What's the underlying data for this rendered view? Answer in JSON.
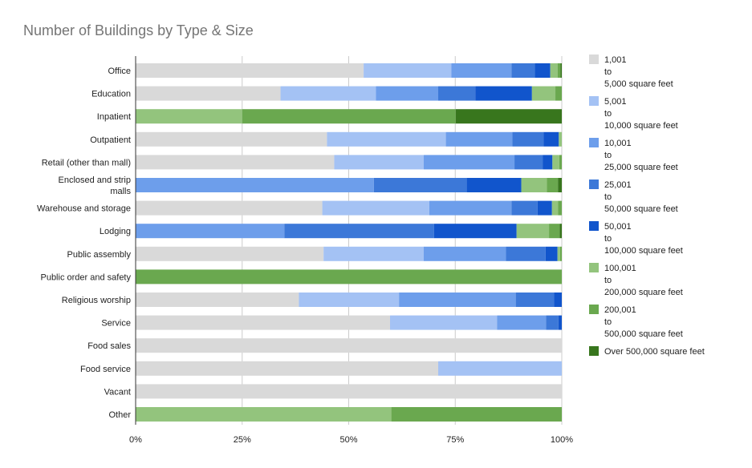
{
  "chart_data": {
    "type": "bar",
    "orientation": "horizontal",
    "stacked": "percent",
    "title": "Number of Buildings by Type & Size",
    "xlabel": "",
    "ylabel": "",
    "xlim": [
      0,
      100
    ],
    "x_ticks": [
      "0%",
      "25%",
      "50%",
      "75%",
      "100%"
    ],
    "grid": "vertical",
    "legend_position": "right",
    "categories": [
      [
        "Office"
      ],
      [
        "Education"
      ],
      [
        "Inpatient"
      ],
      [
        "Outpatient"
      ],
      [
        "Retail (other than mall)"
      ],
      [
        "Enclosed and strip",
        "malls"
      ],
      [
        "Warehouse and storage"
      ],
      [
        "Lodging"
      ],
      [
        "Public assembly"
      ],
      [
        "Public order and safety"
      ],
      [
        "Religious worship"
      ],
      [
        "Service"
      ],
      [
        "Food sales"
      ],
      [
        "Food service"
      ],
      [
        "Vacant"
      ],
      [
        "Other"
      ]
    ],
    "series": [
      {
        "name": [
          "1,001",
          "to",
          "5,000 square feet"
        ],
        "color": "#d9d9d9",
        "values": [
          53.5,
          34.0,
          0,
          44.9,
          46.6,
          0,
          43.8,
          0,
          44.1,
          0,
          38.3,
          59.7,
          100,
          71.0,
          100,
          0
        ]
      },
      {
        "name": [
          "5,001",
          "to",
          "10,000 square feet"
        ],
        "color": "#a4c2f4",
        "values": [
          20.6,
          22.4,
          0,
          27.9,
          21.0,
          0,
          25.1,
          0,
          23.5,
          0,
          23.5,
          25.1,
          0,
          29.0,
          0,
          0
        ]
      },
      {
        "name": [
          "10,001",
          "to",
          "25,000 square feet"
        ],
        "color": "#6d9eeb",
        "values": [
          14.1,
          14.6,
          0,
          15.6,
          21.3,
          55.9,
          19.3,
          34.9,
          19.3,
          0,
          27.4,
          11.5,
          0,
          0,
          0,
          0
        ]
      },
      {
        "name": [
          "25,001",
          "to",
          "50,000 square feet"
        ],
        "color": "#3c78d8",
        "values": [
          5.5,
          8.7,
          0,
          7.3,
          6.6,
          21.8,
          6.1,
          35.1,
          9.3,
          0,
          9.0,
          2.9,
          0,
          0,
          0,
          0
        ]
      },
      {
        "name": [
          "50,001",
          "to",
          " 100,000 square feet"
        ],
        "color": "#1155cc",
        "values": [
          3.6,
          13.3,
          0,
          3.6,
          2.3,
          12.8,
          3.4,
          19.4,
          2.8,
          0,
          1.8,
          0.8,
          0,
          0,
          0,
          0
        ]
      },
      {
        "name": [
          "100,001",
          "to",
          "200,000 square feet"
        ],
        "color": "#93c47d",
        "values": [
          1.7,
          5.5,
          25.0,
          0.7,
          1.6,
          6.0,
          1.4,
          7.6,
          0.6,
          0,
          0,
          0,
          0,
          0,
          0,
          60.0
        ]
      },
      {
        "name": [
          "200,001",
          "to",
          "500,000 square feet"
        ],
        "color": "#6aa84f",
        "values": [
          0.7,
          1.5,
          50.1,
          0,
          0.6,
          2.6,
          0.9,
          2.5,
          0.4,
          100,
          0,
          0,
          0,
          0,
          0,
          40.0
        ]
      },
      {
        "name": [
          "Over 500,000 square feet"
        ],
        "color": "#38761d",
        "values": [
          0.3,
          0,
          24.9,
          0,
          0,
          0.9,
          0,
          0.5,
          0,
          0,
          0,
          0,
          0,
          0,
          0,
          0
        ]
      }
    ],
    "colors": {
      "gridline": "#cccccc",
      "axis": "#333333",
      "title": "#757575",
      "text": "#222222"
    }
  }
}
